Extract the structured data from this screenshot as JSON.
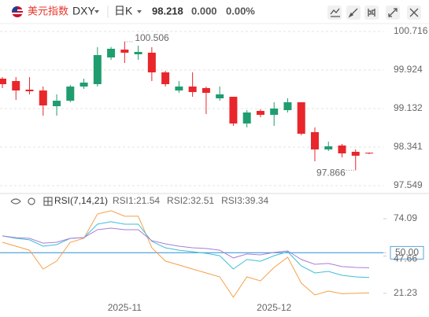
{
  "header": {
    "name": "美元指数",
    "symbol": "DXY",
    "period": "日K",
    "price": "98.218",
    "change": "0.000",
    "change_pct": "0.00%"
  },
  "chart_data": [
    {
      "type": "candlestick",
      "categories": [
        null,
        null,
        null,
        null,
        null,
        null,
        null,
        null,
        null,
        "2025-11",
        null,
        null,
        null,
        null,
        null,
        null,
        null,
        null,
        null,
        null,
        "2025-12",
        null,
        null,
        null,
        null,
        null,
        null,
        null
      ],
      "open": [
        99.747,
        99.698,
        99.521,
        99.504,
        99.181,
        99.294,
        99.585,
        99.634,
        100.183,
        100.344,
        100.248,
        100.28,
        99.876,
        99.504,
        99.585,
        99.553,
        99.343,
        99.375,
        98.826,
        99.084,
        99.004,
        99.1,
        99.262,
        98.648,
        98.293,
        98.374,
        98.244,
        98.225
      ],
      "close": [
        99.634,
        99.504,
        99.488,
        99.197,
        99.294,
        99.585,
        99.666,
        100.231,
        100.361,
        100.28,
        100.296,
        99.876,
        99.634,
        99.585,
        99.472,
        99.456,
        99.424,
        98.826,
        99.052,
        99.004,
        99.133,
        99.262,
        98.616,
        98.293,
        98.357,
        98.212,
        98.164,
        98.218
      ],
      "high": [
        99.779,
        99.779,
        99.779,
        99.585,
        99.424,
        99.617,
        99.747,
        100.393,
        100.399,
        100.506,
        100.425,
        100.393,
        99.908,
        99.698,
        99.876,
        99.585,
        99.585,
        99.375,
        99.1,
        99.117,
        99.262,
        99.343,
        99.262,
        98.745,
        98.454,
        98.406,
        98.293,
        98.23
      ],
      "low": [
        99.553,
        99.311,
        99.424,
        98.987,
        98.987,
        99.262,
        99.537,
        99.585,
        100.134,
        100.07,
        100.134,
        99.698,
        99.585,
        99.456,
        99.375,
        99.02,
        99.294,
        98.777,
        98.745,
        98.955,
        98.777,
        99.052,
        98.584,
        98.05,
        98.26,
        98.131,
        97.866,
        98.196
      ],
      "up_color": "#1f9d6f",
      "down_color": "#e8262b",
      "ylim": [
        97.404,
        100.878
      ],
      "yticks": [
        100.716,
        99.924,
        99.132,
        98.341,
        97.549
      ],
      "grid": true
    },
    {
      "type": "line",
      "title": "RSI(7,14,21)",
      "series": [
        {
          "name": "RSI1:21.54",
          "color": "#f5a04a",
          "values": [
            57.4,
            54.6,
            51.8,
            38.5,
            44.1,
            57.4,
            60.2,
            77.4,
            79.7,
            75.8,
            75.8,
            53.5,
            44.1,
            41.3,
            38.5,
            35.7,
            32.9,
            18.5,
            32.9,
            30.1,
            39.6,
            46.8,
            28.5,
            20.1,
            22.9,
            21.0,
            21.3,
            21.54
          ]
        },
        {
          "name": "RSI2:32.51",
          "color": "#3dbfd9",
          "values": [
            61.9,
            60.2,
            59.1,
            54.6,
            55.7,
            60.2,
            60.7,
            70.2,
            71.9,
            70.2,
            70.2,
            58.0,
            53.5,
            51.8,
            50.7,
            49.6,
            47.9,
            38.5,
            45.2,
            44.0,
            47.9,
            50.7,
            40.7,
            35.7,
            36.8,
            34.0,
            32.9,
            32.51
          ]
        },
        {
          "name": "RSI3:39.34",
          "color": "#a77fd6",
          "values": [
            61.9,
            60.7,
            60.2,
            56.8,
            57.4,
            60.2,
            60.7,
            66.3,
            67.4,
            66.3,
            66.3,
            58.5,
            56.3,
            54.6,
            53.5,
            53.0,
            51.8,
            46.3,
            49.1,
            48.5,
            50.2,
            51.3,
            45.2,
            41.8,
            42.4,
            40.2,
            39.6,
            39.34
          ]
        }
      ],
      "ylim": [
        14.55,
        90.78
      ],
      "yticks": [
        74.09,
        {
          "value": 50,
          "label": "50.00"
        },
        47.66,
        21.23
      ],
      "ref_line": {
        "value": 50,
        "label": "50.00"
      },
      "ref_color": "#2a8fd6"
    }
  ]
}
